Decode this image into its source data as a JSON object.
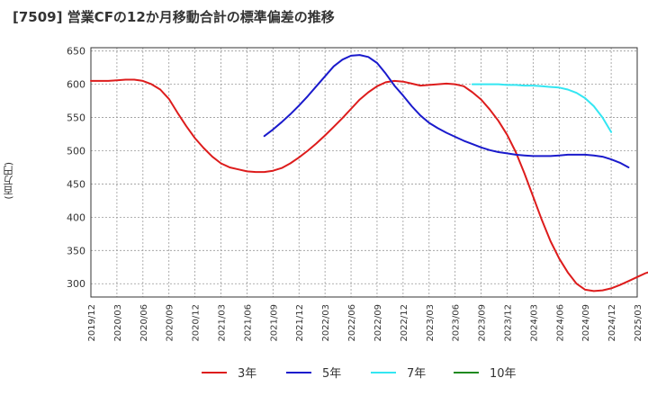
{
  "chart_data": {
    "type": "line",
    "title": "[7509]  営業CFの12か月移動合計の標準偏差の推移",
    "ylabel": "(百万円)",
    "xlabel": "",
    "ylim": [
      280,
      655
    ],
    "yticks": [
      300,
      350,
      400,
      450,
      500,
      550,
      600,
      650
    ],
    "x_tick_labels": [
      "2019/12",
      "2020/03",
      "2020/06",
      "2020/09",
      "2020/12",
      "2021/03",
      "2021/06",
      "2021/09",
      "2021/12",
      "2022/03",
      "2022/06",
      "2022/09",
      "2022/12",
      "2023/03",
      "2023/06",
      "2023/09",
      "2023/12",
      "2024/03",
      "2024/06",
      "2024/09",
      "2024/12",
      "2025/03"
    ],
    "x_start": "2019/12",
    "months_span": 63,
    "grid": true,
    "legend_position": "bottom",
    "series": [
      {
        "name": "3年",
        "color": "#dd1c1c",
        "start": "2019/12",
        "values": [
          605,
          605,
          605,
          606,
          607,
          607,
          605,
          600,
          592,
          578,
          557,
          537,
          519,
          504,
          491,
          481,
          475,
          472,
          469,
          468,
          468,
          470,
          474,
          481,
          490,
          500,
          511,
          523,
          536,
          549,
          563,
          577,
          588,
          597,
          603,
          605,
          604,
          601,
          598,
          599,
          600,
          601,
          600,
          597,
          588,
          577,
          562,
          545,
          524,
          498,
          466,
          431,
          396,
          364,
          338,
          317,
          300,
          291,
          289,
          290,
          293,
          298,
          304,
          310,
          316,
          320
        ]
      },
      {
        "name": "5年",
        "color": "#1a1acc",
        "start": "2021/08",
        "values": [
          522,
          532,
          543,
          555,
          568,
          582,
          597,
          612,
          627,
          637,
          643,
          644,
          641,
          632,
          616,
          598,
          583,
          567,
          553,
          542,
          534,
          527,
          521,
          515,
          510,
          505,
          501,
          498,
          496,
          494,
          493,
          492,
          492,
          492,
          493,
          494,
          494,
          494,
          493,
          491,
          487,
          482,
          475
        ]
      },
      {
        "name": "7年",
        "color": "#33e6f2",
        "start": "2023/08",
        "values": [
          600,
          600,
          600,
          600,
          599,
          599,
          598,
          598,
          597,
          596,
          595,
          592,
          587,
          579,
          567,
          550,
          528
        ]
      },
      {
        "name": "10年",
        "color": "#1f8a1f",
        "start": "2024/09",
        "values": []
      }
    ]
  }
}
